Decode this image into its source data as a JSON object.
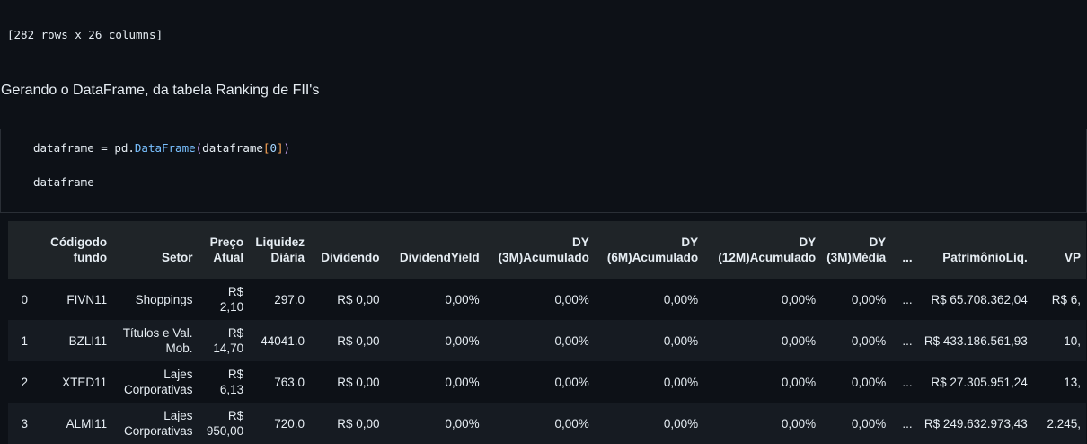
{
  "output": {
    "rows_info": "[282 rows x 26 columns]"
  },
  "markdown": {
    "text": "Gerando o DataFrame, da tabela Ranking de FII's"
  },
  "code": {
    "line1": {
      "var": "dataframe",
      "op": " = ",
      "mod": "pd",
      "dot": ".",
      "attr": "DataFrame",
      "open_paren": "(",
      "arg": "dataframe",
      "open_br": "[",
      "num": "0",
      "close_br": "]",
      "close_paren": ")"
    },
    "line2": "dataframe"
  },
  "table": {
    "headers": [
      {
        "l1": "",
        "l2": ""
      },
      {
        "l1": "Códigodo",
        "l2": "fundo"
      },
      {
        "l1": "",
        "l2": "Setor"
      },
      {
        "l1": "Preço",
        "l2": "Atual"
      },
      {
        "l1": "Liquidez",
        "l2": "Diária"
      },
      {
        "l1": "",
        "l2": "Dividendo"
      },
      {
        "l1": "",
        "l2": "DividendYield"
      },
      {
        "l1": "DY",
        "l2": "(3M)Acumulado"
      },
      {
        "l1": "DY",
        "l2": "(6M)Acumulado"
      },
      {
        "l1": "DY",
        "l2": "(12M)Acumulado"
      },
      {
        "l1": "DY",
        "l2": "(3M)Média"
      },
      {
        "l1": "",
        "l2": "..."
      },
      {
        "l1": "",
        "l2": "PatrimônioLíq."
      },
      {
        "l1": "",
        "l2": "VP"
      }
    ],
    "rows": [
      [
        "0",
        "FIVN11",
        "Shoppings",
        "R$ 2,10",
        "297.0",
        "R$ 0,00",
        "0,00%",
        "0,00%",
        "0,00%",
        "0,00%",
        "0,00%",
        "...",
        "R$ 65.708.362,04",
        "R$ 6,"
      ],
      [
        "1",
        "BZLI11",
        "Títulos e Val. Mob.",
        "R$ 14,70",
        "44041.0",
        "R$ 0,00",
        "0,00%",
        "0,00%",
        "0,00%",
        "0,00%",
        "0,00%",
        "...",
        "R$ 433.186.561,93",
        "10,"
      ],
      [
        "2",
        "XTED11",
        "Lajes Corporativas",
        "R$ 6,13",
        "763.0",
        "R$ 0,00",
        "0,00%",
        "0,00%",
        "0,00%",
        "0,00%",
        "0,00%",
        "...",
        "R$ 27.305.951,24",
        "13,"
      ],
      [
        "3",
        "ALMI11",
        "Lajes Corporativas",
        "R$ 950,00",
        "720.0",
        "R$ 0,00",
        "0,00%",
        "0,00%",
        "0,00%",
        "0,00%",
        "0,00%",
        "...",
        "R$ 249.632.973,43",
        "2.245,"
      ]
    ]
  }
}
